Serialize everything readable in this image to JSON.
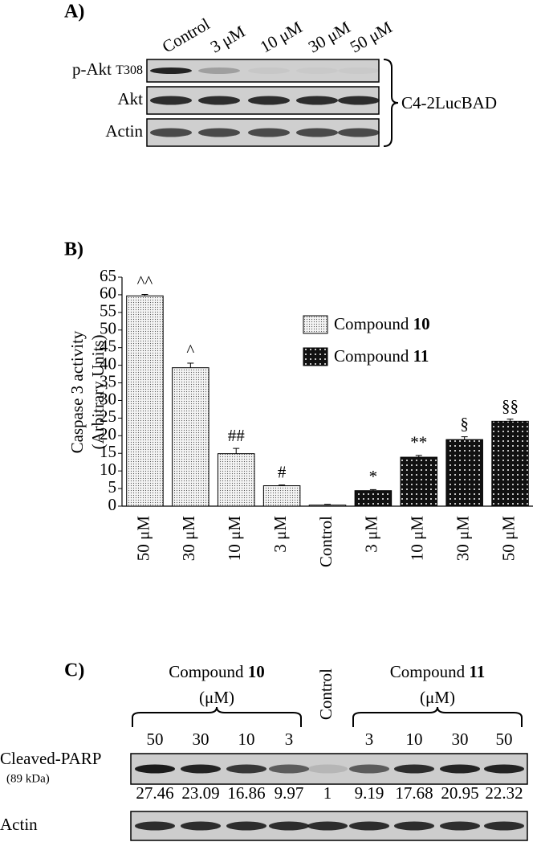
{
  "panel_a": {
    "label": "A)",
    "lanes": [
      "Control",
      "3 μM",
      "10 μM",
      "30 μM",
      "50 μM"
    ],
    "rows": [
      {
        "name": "p-Akt",
        "subscript": "T308"
      },
      {
        "name": "Akt"
      },
      {
        "name": "Actin"
      }
    ],
    "cell_line": "C4-2LucBAD"
  },
  "chart_data": {
    "type": "bar",
    "panel_label": "B)",
    "y_label": [
      "Caspase 3 activity",
      "(Arbitrary Units)"
    ],
    "categories": [
      "50 μM",
      "30 μM",
      "10 μM",
      "3 μM",
      "Control",
      "3 μM",
      "10 μM",
      "30 μM",
      "50 μM"
    ],
    "series": [
      {
        "name": "Compound",
        "number": "10",
        "color": "#f4f4f4",
        "dot_color": "#555555",
        "values": [
          59.7,
          39.3,
          14.9,
          5.8,
          null,
          null,
          null,
          null,
          null
        ],
        "errors": [
          0.4,
          1.3,
          1.5,
          0.2,
          null,
          null,
          null,
          null,
          null
        ]
      },
      {
        "name": "Compound",
        "number": "11",
        "color": "#111111",
        "dot_color": "#ffffff",
        "values": [
          null,
          null,
          null,
          null,
          null,
          4.4,
          13.9,
          18.9,
          24.1
        ],
        "errors": [
          null,
          null,
          null,
          null,
          null,
          0.3,
          0.5,
          0.8,
          0.6
        ]
      }
    ],
    "control": {
      "value": 0.3,
      "error": 0.2,
      "color": "#f4f4f4",
      "dot_color": "#555555"
    },
    "annotations": [
      "^^",
      "^",
      "##",
      "#",
      null,
      "*",
      "**",
      "§",
      "§§"
    ],
    "ylim": [
      0,
      65
    ],
    "yticks": [
      0,
      5,
      10,
      15,
      20,
      25,
      30,
      35,
      40,
      45,
      50,
      55,
      60,
      65
    ],
    "grid": false
  },
  "panel_c": {
    "label": "C)",
    "groups": [
      {
        "name": "Compound",
        "number": "10",
        "unit": "(μM)",
        "lanes": [
          "50",
          "30",
          "10",
          "3"
        ]
      },
      {
        "name": "Compound",
        "number": "11",
        "unit": "(μM)",
        "lanes": [
          "3",
          "10",
          "30",
          "50"
        ]
      }
    ],
    "control": "Control",
    "blots": [
      {
        "name": "Cleaved-PARP",
        "subname": "(89 kDa)",
        "values": [
          "27.46",
          "23.09",
          "16.86",
          "9.97",
          "1",
          "9.19",
          "17.68",
          "20.95",
          "22.32"
        ]
      },
      {
        "name": "Actin"
      }
    ]
  }
}
